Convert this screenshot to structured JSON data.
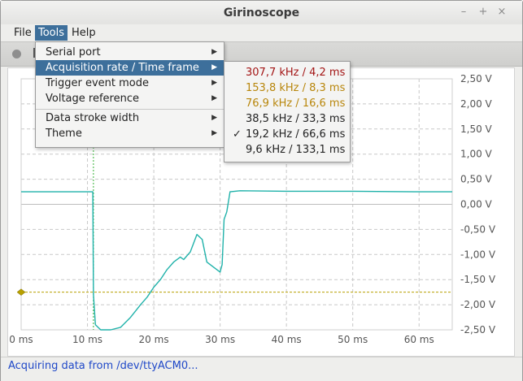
{
  "window": {
    "title": "Girinoscope",
    "minimize": "–",
    "maximize": "+",
    "close": "×"
  },
  "menubar": {
    "items": [
      "File",
      "Tools",
      "Help"
    ],
    "active": "Tools"
  },
  "toolbar": {
    "status_icon": "circle-icon"
  },
  "tools_menu": {
    "items": [
      {
        "label": "Serial port",
        "submenu": true
      },
      {
        "label": "Acquisition rate / Time frame",
        "submenu": true,
        "highlighted": true
      },
      {
        "label": "Trigger event mode",
        "submenu": true
      },
      {
        "label": "Voltage reference",
        "submenu": true
      },
      {
        "label": "Data stroke width",
        "submenu": true
      },
      {
        "label": "Theme",
        "submenu": true
      }
    ],
    "arrow_glyph": "▶"
  },
  "rate_submenu": {
    "check_glyph": "✓",
    "items": [
      {
        "label": "307,7 kHz / 4,2 ms",
        "color": "#a31515",
        "checked": false
      },
      {
        "label": "153,8 kHz / 8,3 ms",
        "color": "#b8860b",
        "checked": false
      },
      {
        "label": "76,9 kHz / 16,6 ms",
        "color": "#b8860b",
        "checked": false
      },
      {
        "label": "38,5 kHz / 33,3 ms",
        "color": "#222222",
        "checked": false
      },
      {
        "label": "19,2 kHz / 66,6 ms",
        "color": "#222222",
        "checked": true
      },
      {
        "label": "9,6 kHz / 133,1 ms",
        "color": "#222222",
        "checked": false
      }
    ]
  },
  "chart_data": {
    "type": "line",
    "x_unit": "ms",
    "xlim": [
      0,
      65
    ],
    "ylim": [
      -2.5,
      2.5
    ],
    "x_ticks": [
      "0 ms",
      "10 ms",
      "20 ms",
      "30 ms",
      "40 ms",
      "50 ms",
      "60 ms"
    ],
    "x_tick_values": [
      0,
      10,
      20,
      30,
      40,
      50,
      60
    ],
    "y_ticks": [
      "2,50 V",
      "2,00 V",
      "1,50 V",
      "1,00 V",
      "0,50 V",
      "0,00 V",
      "-0,50 V",
      "-1,00 V",
      "-1,50 V",
      "-2,00 V",
      "-2,50 V"
    ],
    "y_tick_values": [
      2.5,
      2.0,
      1.5,
      1.0,
      0.5,
      0.0,
      -0.5,
      -1.0,
      -1.5,
      -2.0,
      -2.5
    ],
    "grid": true,
    "trigger_time_ms": 10.9,
    "trigger_level_v": -1.75,
    "trigger_color": "#b8a000",
    "series": [
      {
        "color": "#20b2aa",
        "x": [
          0,
          5,
          10.8,
          10.9,
          11.2,
          12,
          13.5,
          15,
          16.5,
          18,
          19,
          20,
          21,
          22,
          23,
          24,
          24.5,
          25.5,
          26.5,
          27.3,
          28,
          29,
          30,
          30.3,
          30.6,
          31,
          31.5,
          33,
          40,
          50,
          60,
          65
        ],
        "y": [
          0.25,
          0.25,
          0.25,
          -1.8,
          -2.4,
          -2.5,
          -2.5,
          -2.45,
          -2.25,
          -2.0,
          -1.85,
          -1.65,
          -1.5,
          -1.3,
          -1.15,
          -1.05,
          -1.1,
          -0.95,
          -0.6,
          -0.7,
          -1.15,
          -1.25,
          -1.35,
          -1.2,
          -0.3,
          -0.15,
          0.25,
          0.27,
          0.26,
          0.26,
          0.25,
          0.25
        ]
      }
    ]
  },
  "statusbar": {
    "text": "Acquiring data from /dev/ttyACM0..."
  }
}
